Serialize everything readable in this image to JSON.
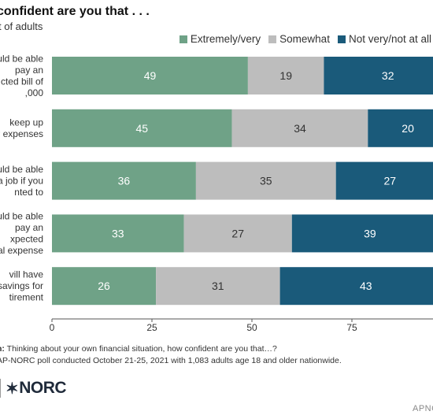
{
  "header": {
    "title": "confident are you that . . .",
    "subtitle": "t of adults"
  },
  "legend": [
    {
      "label": "Extremely/very",
      "color": "#6fa287"
    },
    {
      "label": "Somewhat",
      "color": "#bdbdbd"
    },
    {
      "label": "Not very/not at all",
      "color": "#1a5a7a"
    }
  ],
  "chart_data": {
    "type": "bar",
    "orientation": "horizontal",
    "stacked": true,
    "title": "confident are you that . . .",
    "subtitle": "t of adults",
    "categories": [
      [
        "uld be able",
        "pay an",
        "cted bill of",
        ",000"
      ],
      [
        "keep up",
        "r expenses"
      ],
      [
        "uld be able",
        "a job if you",
        "nted to"
      ],
      [
        "uld be able",
        "pay an",
        "xpected",
        "al expense"
      ],
      [
        "vill have",
        "savings for",
        "tirement"
      ]
    ],
    "series": [
      {
        "name": "Extremely/very",
        "color": "#6fa287",
        "label_color": "#ffffff",
        "values": [
          49,
          45,
          36,
          33,
          26
        ]
      },
      {
        "name": "Somewhat",
        "color": "#bdbdbd",
        "label_color": "#333333",
        "values": [
          19,
          34,
          35,
          27,
          31
        ]
      },
      {
        "name": "Not very/not at all",
        "color": "#1a5a7a",
        "label_color": "#ffffff",
        "values": [
          32,
          20,
          27,
          39,
          43
        ]
      }
    ],
    "xlim": [
      0,
      100
    ],
    "xticks": [
      0,
      25,
      50,
      75
    ],
    "legend_position": "top-right",
    "grid": false
  },
  "notes": {
    "question_prefix": "n:",
    "question_text": " Thinking about your own financial situation, how confident are you that…?",
    "source": "AP-NORC poll conducted October 21-25, 2021 with 1,083 adults age 18 and older nationwide."
  },
  "logo": {
    "star": "✶",
    "text": "NORC"
  },
  "credit": "APNC"
}
